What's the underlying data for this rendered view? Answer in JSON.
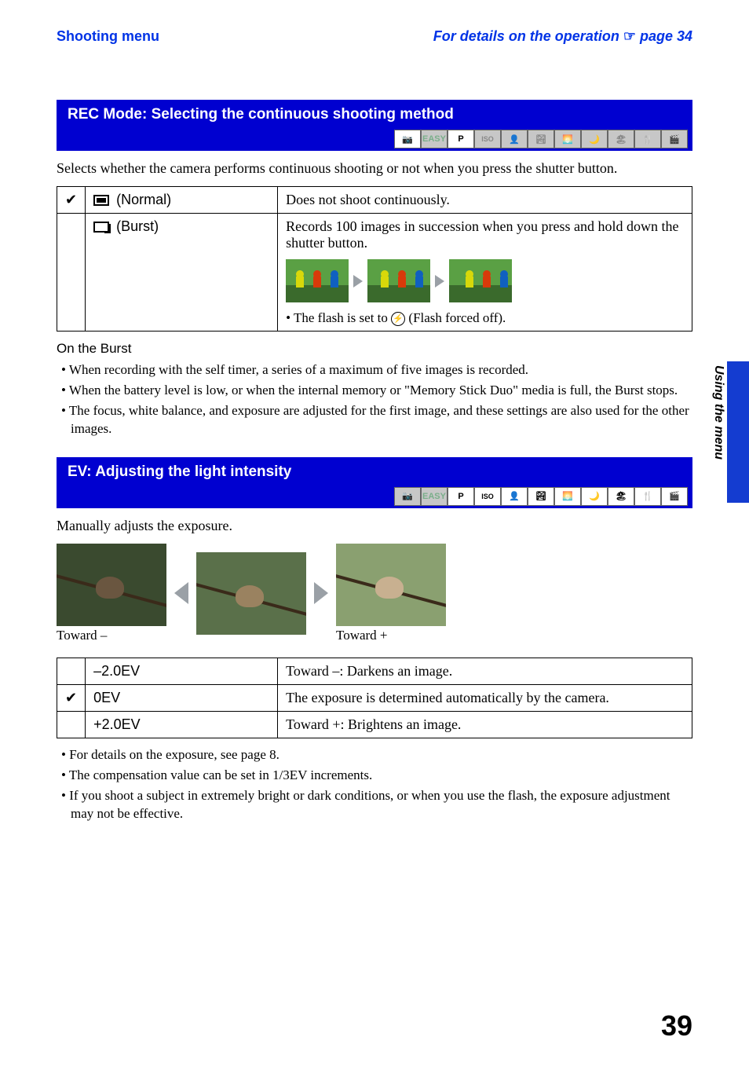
{
  "header": {
    "left": "Shooting menu",
    "right_prefix": "For details on the operation ",
    "right_suffix": " page 34"
  },
  "section1": {
    "title": "REC Mode: Selecting the continuous shooting method",
    "intro": "Selects whether the camera performs continuous shooting or not when you press the shutter button.",
    "row_normal_label": "(Normal)",
    "row_normal_desc": "Does not shoot continuously.",
    "row_burst_label": "(Burst)",
    "row_burst_desc": "Records 100 images in succession when you press and hold down the shutter button.",
    "flash_note_prefix": "• The flash is set to ",
    "flash_note_suffix": " (Flash forced off).",
    "sub_heading": "On the Burst",
    "bullets": [
      "When recording with the self timer, a series of a maximum of five images is recorded.",
      "When the battery level is low, or when the internal memory or \"Memory Stick Duo\" media is full, the Burst stops.",
      "The focus, white balance, and exposure are adjusted for the first image, and these settings are also used for the other images."
    ],
    "mode_icons": [
      "📷",
      "EASY",
      "P",
      "ISO",
      "👤",
      "🏞",
      "🌅",
      "🌙",
      "🏖",
      "🍴",
      "🎬"
    ],
    "mode_active": [
      true,
      false,
      true,
      false,
      false,
      false,
      false,
      false,
      false,
      false,
      false
    ]
  },
  "section2": {
    "title": "EV: Adjusting the light intensity",
    "intro": "Manually adjusts the exposure.",
    "caption_left": "Toward –",
    "caption_right": "Toward +",
    "bird_bg_dark": "#3a4a2f",
    "bird_bg_mid": "#5a704a",
    "bird_bg_light": "#8aa070",
    "bird_color_dark": "#6a5640",
    "bird_color_mid": "#9a8260",
    "bird_color_light": "#c8b090",
    "rows": [
      {
        "check": "",
        "label": "–2.0EV",
        "desc": "Toward –: Darkens an image."
      },
      {
        "check": "✔",
        "label": "0EV",
        "desc": "The exposure is determined automatically by the camera."
      },
      {
        "check": "",
        "label": "+2.0EV",
        "desc": "Toward +: Brightens an image."
      }
    ],
    "bullets": [
      "For details on the exposure, see page 8.",
      "The compensation value can be set in 1/3EV increments.",
      "If you shoot a subject in extremely bright or dark conditions, or when you use the flash, the exposure adjustment may not be effective."
    ],
    "mode_icons": [
      "📷",
      "EASY",
      "P",
      "ISO",
      "👤",
      "🏞",
      "🌅",
      "🌙",
      "🏖",
      "🍴",
      "🎬"
    ],
    "mode_active": [
      false,
      false,
      true,
      true,
      true,
      true,
      true,
      true,
      true,
      true,
      true
    ]
  },
  "side_tab": "Using the menu",
  "page_number": "39"
}
